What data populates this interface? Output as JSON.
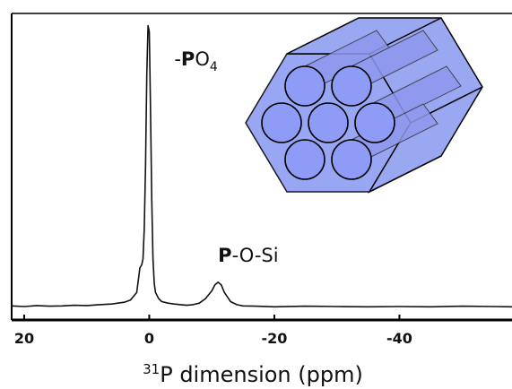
{
  "chart_data": {
    "type": "line",
    "x_label_sup": "31",
    "x_label": "P dimension (ppm)",
    "annotations": [
      {
        "parts": [
          "-",
          "P",
          "O",
          "4"
        ],
        "x": 0.3,
        "y": 83
      },
      {
        "parts": [
          "P",
          "-O-Si"
        ],
        "x": -11,
        "y": 19
      }
    ],
    "x": [
      22,
      20,
      18,
      16,
      14,
      12,
      10,
      8,
      6,
      4,
      3,
      2,
      1.5,
      1.2,
      1,
      0.8,
      0.6,
      0.4,
      0.2,
      0,
      -0.2,
      -0.4,
      -0.6,
      -0.8,
      -1,
      -1.5,
      -2,
      -3,
      -4,
      -5,
      -6,
      -7,
      -8,
      -9,
      -10,
      -10.5,
      -11,
      -11.5,
      -12,
      -13,
      -14,
      -15,
      -17,
      -20,
      -25,
      -30,
      -35,
      -40,
      -45,
      -50,
      -55,
      -58
    ],
    "values": [
      4.6,
      4.4,
      4.7,
      4.5,
      4.6,
      4.8,
      4.7,
      5.0,
      5.2,
      5.8,
      6.5,
      9,
      17,
      18,
      20,
      30,
      50,
      80,
      96,
      94,
      70,
      40,
      20,
      12,
      9,
      7,
      6,
      5.5,
      5.2,
      5.0,
      4.8,
      5.0,
      5.5,
      7,
      9.5,
      11.5,
      12.3,
      11.5,
      9,
      6,
      5,
      4.6,
      4.5,
      4.3,
      4.5,
      4.4,
      4.3,
      4.4,
      4.3,
      4.5,
      4.4,
      4.3
    ],
    "color": "#111111",
    "xlim": [
      22,
      -58
    ],
    "ylim": [
      0,
      100
    ],
    "xticks": [
      20,
      0,
      -20,
      -40
    ]
  }
}
